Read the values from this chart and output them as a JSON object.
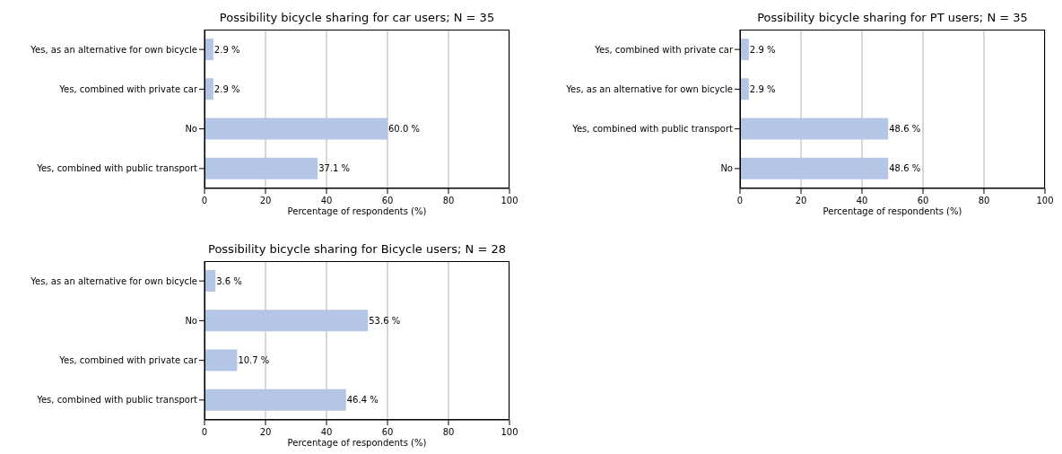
{
  "chart_data": [
    {
      "type": "bar",
      "orientation": "horizontal",
      "title": "Possibility bicycle sharing for car users; N = 35",
      "xlabel": "Percentage of respondents (%)",
      "categories": [
        "Yes, as an alternative for own bicycle",
        "Yes, combined with private car",
        "No",
        "Yes, combined with public transport"
      ],
      "values": [
        2.9,
        2.9,
        60.0,
        37.1
      ],
      "value_labels": [
        "2.9 %",
        "2.9 %",
        "60.0 %",
        "37.1 %"
      ],
      "color": "#b4c5e6",
      "xlim": [
        0,
        100
      ],
      "xticks": [
        0,
        20,
        40,
        60,
        80,
        100
      ],
      "grid": "x",
      "legend": false
    },
    {
      "type": "bar",
      "orientation": "horizontal",
      "title": "Possibility bicycle sharing for PT users; N = 35",
      "xlabel": "Percentage of respondents (%)",
      "categories": [
        "Yes, combined with private car",
        "Yes, as an alternative for own bicycle",
        "Yes, combined with public transport",
        "No"
      ],
      "values": [
        2.9,
        2.9,
        48.6,
        48.6
      ],
      "value_labels": [
        "2.9 %",
        "2.9 %",
        "48.6 %",
        "48.6 %"
      ],
      "color": "#b4c5e6",
      "xlim": [
        0,
        100
      ],
      "xticks": [
        0,
        20,
        40,
        60,
        80,
        100
      ],
      "grid": "x",
      "legend": false
    },
    {
      "type": "bar",
      "orientation": "horizontal",
      "title": "Possibility bicycle sharing for Bicycle users; N = 28",
      "xlabel": "Percentage of respondents (%)",
      "categories": [
        "Yes, as an alternative for own bicycle",
        "No",
        "Yes, combined with private car",
        "Yes, combined with public transport"
      ],
      "values": [
        3.6,
        53.6,
        10.7,
        46.4
      ],
      "value_labels": [
        "3.6 %",
        "53.6 %",
        "10.7 %",
        "46.4 %"
      ],
      "color": "#b4c5e6",
      "xlim": [
        0,
        100
      ],
      "xticks": [
        0,
        20,
        40,
        60,
        80,
        100
      ],
      "grid": "x",
      "legend": false
    }
  ]
}
